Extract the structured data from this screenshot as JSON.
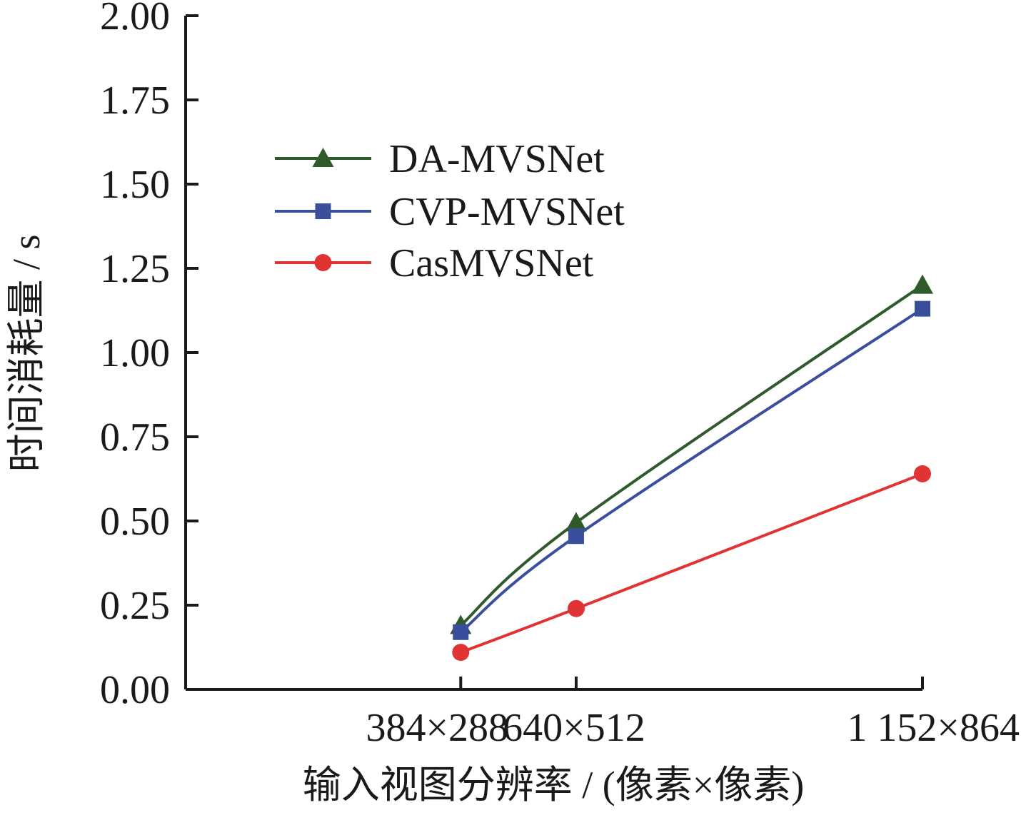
{
  "chart_data": {
    "type": "line",
    "categories": [
      "384×288",
      "640×512",
      "1 152×864"
    ],
    "x_positions": [
      0.56,
      0.795,
      1.5
    ],
    "xlabel": "输入视图分辨率 / (像素×像素)",
    "ylabel": "时间消耗量 / s",
    "ylim": [
      0,
      2.0
    ],
    "yticks": [
      "0.00",
      "0.25",
      "0.50",
      "0.75",
      "1.00",
      "1.25",
      "1.50",
      "1.75",
      "2.00"
    ],
    "grid": false,
    "legend_position": "upper-left",
    "series": [
      {
        "name": "DA-MVSNet",
        "marker": "triangle",
        "color": "#2f5a2a",
        "values": [
          0.19,
          0.495,
          1.2
        ]
      },
      {
        "name": "CVP-MVSNet",
        "marker": "square",
        "color": "#3a4f9c",
        "values": [
          0.17,
          0.455,
          1.13
        ]
      },
      {
        "name": "CasMVSNet",
        "marker": "circle",
        "color": "#e03434",
        "values": [
          0.11,
          0.24,
          0.64
        ]
      }
    ]
  }
}
